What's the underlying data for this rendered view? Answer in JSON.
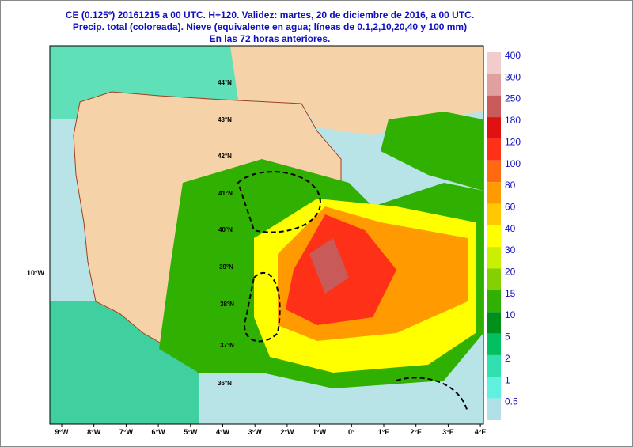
{
  "header": {
    "lines": [
      "CE (0.125º) 20161215 a 00 UTC.  H+120. Validez: martes, 20 de diciembre de 2016,  a 00 UTC.",
      "Precip. total (coloreada). Nieve (equivalente en agua; líneas de 0.1,2,10,20,40 y 100 mm)",
      "En las 72 horas anteriores."
    ]
  },
  "colorbar": [
    {
      "label": "400",
      "color": "#f2cccc"
    },
    {
      "label": "300",
      "color": "#e0a0a0"
    },
    {
      "label": "250",
      "color": "#c85a5a"
    },
    {
      "label": "180",
      "color": "#e01010"
    },
    {
      "label": "120",
      "color": "#ff3018"
    },
    {
      "label": "100",
      "color": "#ff6a10"
    },
    {
      "label": "80",
      "color": "#ff9a00"
    },
    {
      "label": "60",
      "color": "#ffc800"
    },
    {
      "label": "40",
      "color": "#ffff00"
    },
    {
      "label": "30",
      "color": "#c8f000"
    },
    {
      "label": "20",
      "color": "#84d000"
    },
    {
      "label": "15",
      "color": "#30b000"
    },
    {
      "label": "10",
      "color": "#00901a"
    },
    {
      "label": "5",
      "color": "#00c060"
    },
    {
      "label": "2",
      "color": "#30e0b0"
    },
    {
      "label": "1",
      "color": "#60f0e0"
    },
    {
      "label": "0.5",
      "color": "#b0e0e8"
    }
  ],
  "lon_ticks": [
    "9°W",
    "8°W",
    "7°W",
    "6°W",
    "5°W",
    "4°W",
    "3°W",
    "2°W",
    "1°W",
    "0°",
    "1°E",
    "2°E",
    "3°E",
    "4°E"
  ],
  "left_label": "10°W",
  "lat_labels": [
    "44°N",
    "43°N",
    "42°N",
    "41°N",
    "40°N",
    "39°N",
    "38°N",
    "37°N",
    "36°N"
  ]
}
